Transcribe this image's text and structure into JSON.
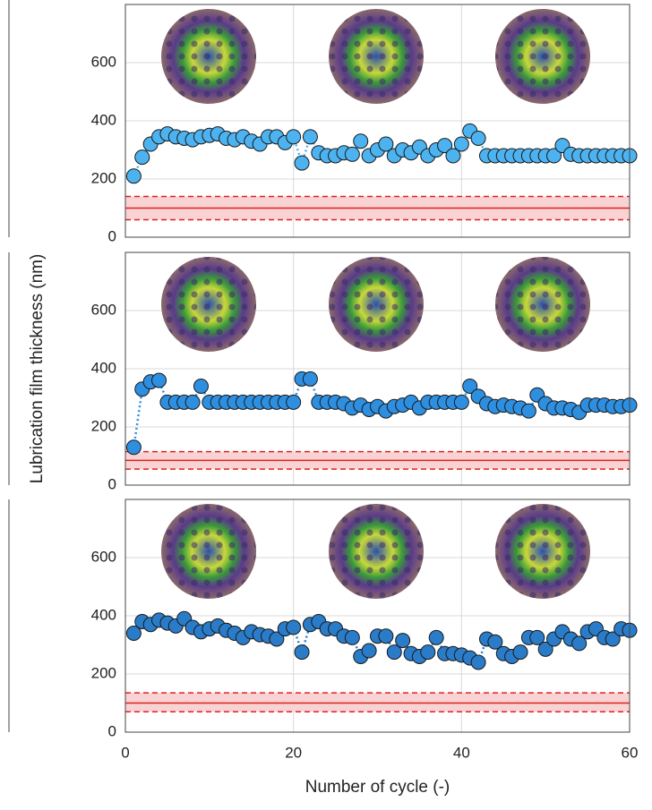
{
  "chart_data": [
    {
      "type": "scatter",
      "xlim": [
        0,
        60
      ],
      "xticks": [
        0,
        20,
        40,
        60
      ],
      "xtick_labels": false,
      "ylim": [
        0,
        800
      ],
      "yticks": [
        0,
        200,
        400,
        600
      ],
      "grid": true,
      "reference_line": 100,
      "reference_band": [
        60,
        140
      ],
      "x": [
        1,
        2,
        3,
        4,
        5,
        6,
        7,
        8,
        9,
        10,
        11,
        12,
        13,
        14,
        15,
        16,
        17,
        18,
        19,
        20,
        21,
        22,
        23,
        24,
        25,
        26,
        27,
        28,
        29,
        30,
        31,
        32,
        33,
        34,
        35,
        36,
        37,
        38,
        39,
        40,
        41,
        42,
        43,
        44,
        45,
        46,
        47,
        48,
        49,
        50,
        51,
        52,
        53,
        54,
        55,
        56,
        57,
        58,
        59,
        60
      ],
      "series": [
        {
          "color": "#4db3f0",
          "values": [
            210,
            275,
            320,
            345,
            355,
            345,
            340,
            335,
            345,
            350,
            355,
            340,
            335,
            345,
            330,
            320,
            345,
            345,
            325,
            345,
            255,
            345,
            290,
            280,
            280,
            290,
            285,
            330,
            280,
            300,
            320,
            280,
            300,
            290,
            310,
            280,
            300,
            315,
            280,
            320,
            365,
            340,
            280,
            280,
            280,
            280,
            280,
            280,
            280,
            280,
            280,
            315,
            285,
            280,
            280,
            280,
            280,
            280,
            280,
            280
          ]
        }
      ]
    },
    {
      "type": "scatter",
      "xlim": [
        0,
        60
      ],
      "xticks": [
        0,
        20,
        40,
        60
      ],
      "xtick_labels": false,
      "ylim": [
        0,
        800
      ],
      "yticks": [
        0,
        200,
        400,
        600
      ],
      "grid": true,
      "ylabel": "Lubrication film thickness (nm)",
      "reference_line": 85,
      "reference_band": [
        55,
        115
      ],
      "x": [
        1,
        2,
        3,
        4,
        5,
        6,
        7,
        8,
        9,
        10,
        11,
        12,
        13,
        14,
        15,
        16,
        17,
        18,
        19,
        20,
        21,
        22,
        23,
        24,
        25,
        26,
        27,
        28,
        29,
        30,
        31,
        32,
        33,
        34,
        35,
        36,
        37,
        38,
        39,
        40,
        41,
        42,
        43,
        44,
        45,
        46,
        47,
        48,
        49,
        50,
        51,
        52,
        53,
        54,
        55,
        56,
        57,
        58,
        59,
        60
      ],
      "series": [
        {
          "color": "#2e8fe0",
          "values": [
            130,
            330,
            355,
            360,
            285,
            285,
            285,
            285,
            340,
            285,
            285,
            285,
            285,
            285,
            285,
            285,
            285,
            285,
            285,
            285,
            365,
            365,
            285,
            285,
            285,
            280,
            265,
            275,
            260,
            270,
            255,
            270,
            275,
            285,
            265,
            285,
            285,
            285,
            285,
            285,
            340,
            305,
            280,
            270,
            275,
            270,
            265,
            255,
            310,
            280,
            265,
            265,
            260,
            250,
            275,
            275,
            275,
            270,
            270,
            275
          ]
        }
      ]
    },
    {
      "type": "scatter",
      "xlim": [
        0,
        60
      ],
      "xticks": [
        0,
        20,
        40,
        60
      ],
      "xtick_labels": true,
      "ylim": [
        0,
        800
      ],
      "yticks": [
        0,
        200,
        400,
        600
      ],
      "grid": true,
      "xlabel": "Number of cycle (-)",
      "reference_line": 100,
      "reference_band": [
        70,
        135
      ],
      "x": [
        1,
        2,
        3,
        4,
        5,
        6,
        7,
        8,
        9,
        10,
        11,
        12,
        13,
        14,
        15,
        16,
        17,
        18,
        19,
        20,
        21,
        22,
        23,
        24,
        25,
        26,
        27,
        28,
        29,
        30,
        31,
        32,
        33,
        34,
        35,
        36,
        37,
        38,
        39,
        40,
        41,
        42,
        43,
        44,
        45,
        46,
        47,
        48,
        49,
        50,
        51,
        52,
        53,
        54,
        55,
        56,
        57,
        58,
        59,
        60
      ],
      "series": [
        {
          "color": "#2a7cc9",
          "values": [
            340,
            380,
            370,
            385,
            375,
            365,
            390,
            360,
            345,
            355,
            365,
            350,
            340,
            325,
            345,
            335,
            330,
            320,
            355,
            360,
            275,
            370,
            380,
            355,
            355,
            330,
            325,
            260,
            280,
            330,
            330,
            275,
            315,
            270,
            260,
            275,
            325,
            270,
            270,
            265,
            255,
            240,
            320,
            310,
            270,
            260,
            275,
            325,
            325,
            285,
            320,
            345,
            320,
            305,
            345,
            355,
            325,
            320,
            355,
            350
          ]
        }
      ]
    }
  ]
}
